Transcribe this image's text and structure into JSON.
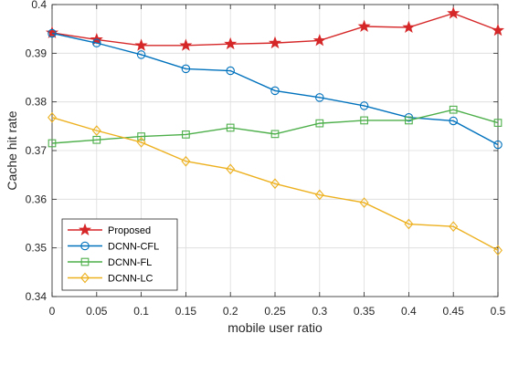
{
  "chart_data": {
    "type": "line",
    "title": "",
    "xlabel": "mobile user ratio",
    "ylabel": "Cache hit rate",
    "x": [
      0,
      0.05,
      0.1,
      0.15,
      0.2,
      0.25,
      0.3,
      0.35,
      0.4,
      0.45,
      0.5
    ],
    "x_tick_labels": [
      "0",
      "0.05",
      "0.1",
      "0.15",
      "0.2",
      "0.25",
      "0.3",
      "0.35",
      "0.4",
      "0.45",
      "0.5"
    ],
    "y_tick_labels": [
      "0.34",
      "0.35",
      "0.36",
      "0.37",
      "0.38",
      "0.39",
      "0.4"
    ],
    "xlim": [
      0,
      0.5
    ],
    "ylim": [
      0.34,
      0.4
    ],
    "grid": true,
    "legend_position": "lower-left",
    "series": [
      {
        "name": "Proposed",
        "color": "#d62728",
        "marker": "star",
        "values": [
          0.3942,
          0.3928,
          0.3916,
          0.3916,
          0.3919,
          0.3921,
          0.3926,
          0.3955,
          0.3953,
          0.3982,
          0.3947
        ]
      },
      {
        "name": "DCNN-CFL",
        "color": "#0072bd",
        "marker": "circle",
        "values": [
          0.3941,
          0.3921,
          0.3897,
          0.3868,
          0.3864,
          0.3823,
          0.3809,
          0.3792,
          0.3768,
          0.3761,
          0.3712
        ]
      },
      {
        "name": "DCNN-FL",
        "color": "#4daf4a",
        "marker": "square",
        "values": [
          0.3715,
          0.3722,
          0.3729,
          0.3733,
          0.3747,
          0.3734,
          0.3756,
          0.3762,
          0.3762,
          0.3784,
          0.3757
        ]
      },
      {
        "name": "DCNN-LC",
        "color": "#edb120",
        "marker": "diamond",
        "values": [
          0.3768,
          0.3741,
          0.3717,
          0.3678,
          0.3662,
          0.3632,
          0.3609,
          0.3593,
          0.3549,
          0.3544,
          0.3495
        ]
      }
    ]
  }
}
